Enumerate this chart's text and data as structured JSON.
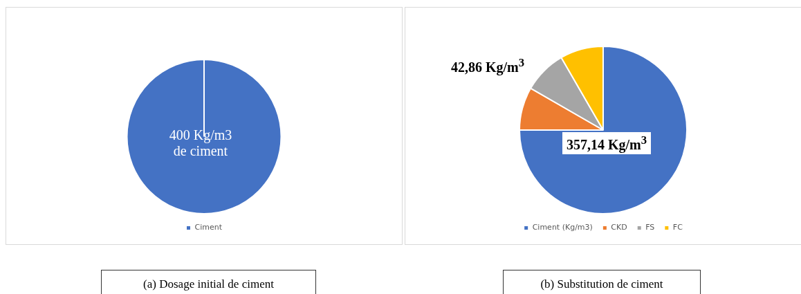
{
  "chart_data": [
    {
      "type": "pie",
      "title": "(a) Dosage initial de ciment",
      "categories": [
        "Ciment"
      ],
      "values": [
        100
      ],
      "colors": [
        "#4472c4"
      ],
      "legend": "bottom",
      "annotations": [
        "400 Kg/m3\nde ciment"
      ]
    },
    {
      "type": "pie",
      "title": "(b) Substitution de ciment",
      "categories": [
        "Ciment (Kg/m3)",
        "CKD",
        "FS",
        "FC"
      ],
      "values": [
        75,
        8.33,
        8.33,
        8.34
      ],
      "colors": [
        "#4472c4",
        "#ed7d31",
        "#a5a5a5",
        "#ffc000"
      ],
      "legend": "bottom",
      "annotations": [
        "42,86 Kg/m$^{3}$",
        "357,14 Kg/m$^{3}$"
      ]
    }
  ]
}
